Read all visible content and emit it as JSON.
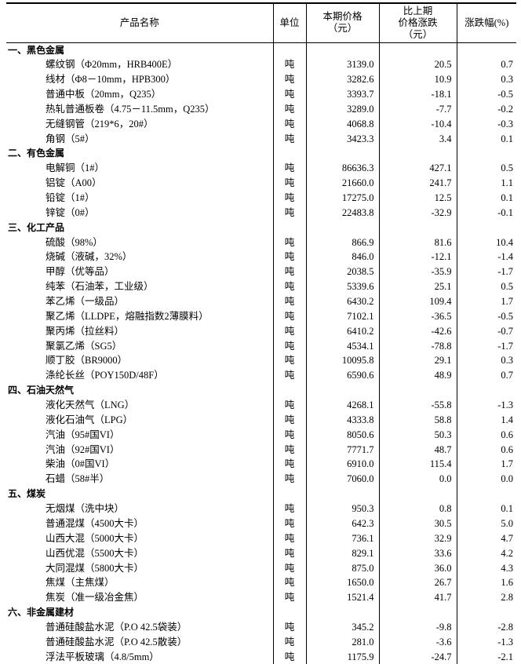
{
  "header": {
    "name": "产品名称",
    "unit": "单位",
    "price_l1": "本期价格",
    "price_l2": "（元）",
    "change_l1": "比上期",
    "change_l2": "价格涨跌",
    "change_l3": "（元）",
    "pct": "涨跌幅(%)"
  },
  "sections": [
    {
      "title": "一、黑色金属",
      "rows": [
        {
          "name": "螺纹钢（Φ20mm，HRB400E）",
          "unit": "吨",
          "price": "3139.0",
          "change": "20.5",
          "pct": "0.7"
        },
        {
          "name": "线材（Φ8－10mm，HPB300）",
          "unit": "吨",
          "price": "3282.6",
          "change": "10.9",
          "pct": "0.3"
        },
        {
          "name": "普通中板（20mm，Q235）",
          "unit": "吨",
          "price": "3393.7",
          "change": "-18.1",
          "pct": "-0.5"
        },
        {
          "name": "热轧普通板卷（4.75－11.5mm，Q235）",
          "unit": "吨",
          "price": "3289.0",
          "change": "-7.7",
          "pct": "-0.2"
        },
        {
          "name": "无缝钢管（219*6，20#）",
          "unit": "吨",
          "price": "4068.8",
          "change": "-10.4",
          "pct": "-0.3"
        },
        {
          "name": "角钢（5#）",
          "unit": "吨",
          "price": "3423.3",
          "change": "3.4",
          "pct": "0.1"
        }
      ]
    },
    {
      "title": "二、有色金属",
      "rows": [
        {
          "name": "电解铜（1#）",
          "unit": "吨",
          "price": "86636.3",
          "change": "427.1",
          "pct": "0.5"
        },
        {
          "name": "铝锭（A00）",
          "unit": "吨",
          "price": "21660.0",
          "change": "241.7",
          "pct": "1.1"
        },
        {
          "name": "铅锭（1#）",
          "unit": "吨",
          "price": "17275.0",
          "change": "12.5",
          "pct": "0.1"
        },
        {
          "name": "锌锭（0#）",
          "unit": "吨",
          "price": "22483.8",
          "change": "-32.9",
          "pct": "-0.1"
        }
      ]
    },
    {
      "title": "三、化工产品",
      "rows": [
        {
          "name": "硫酸（98%）",
          "unit": "吨",
          "price": "866.9",
          "change": "81.6",
          "pct": "10.4"
        },
        {
          "name": "烧碱（液碱，32%）",
          "unit": "吨",
          "price": "846.0",
          "change": "-12.1",
          "pct": "-1.4"
        },
        {
          "name": "甲醇（优等品）",
          "unit": "吨",
          "price": "2038.5",
          "change": "-35.9",
          "pct": "-1.7"
        },
        {
          "name": "纯苯（石油苯，工业级）",
          "unit": "吨",
          "price": "5339.6",
          "change": "25.1",
          "pct": "0.5"
        },
        {
          "name": "苯乙烯（一级品）",
          "unit": "吨",
          "price": "6430.2",
          "change": "109.4",
          "pct": "1.7"
        },
        {
          "name": "聚乙烯（LLDPE，熔融指数2薄膜料）",
          "unit": "吨",
          "price": "7102.1",
          "change": "-36.5",
          "pct": "-0.5"
        },
        {
          "name": "聚丙烯（拉丝料）",
          "unit": "吨",
          "price": "6410.2",
          "change": "-42.6",
          "pct": "-0.7"
        },
        {
          "name": "聚氯乙烯（SG5）",
          "unit": "吨",
          "price": "4534.1",
          "change": "-78.8",
          "pct": "-1.7"
        },
        {
          "name": "顺丁胶（BR9000）",
          "unit": "吨",
          "price": "10095.8",
          "change": "29.1",
          "pct": "0.3"
        },
        {
          "name": "涤纶长丝（POY150D/48F）",
          "unit": "吨",
          "price": "6590.6",
          "change": "48.9",
          "pct": "0.7"
        }
      ]
    },
    {
      "title": "四、石油天然气",
      "rows": [
        {
          "name": "液化天然气（LNG）",
          "unit": "吨",
          "price": "4268.1",
          "change": "-55.8",
          "pct": "-1.3"
        },
        {
          "name": "液化石油气（LPG）",
          "unit": "吨",
          "price": "4333.8",
          "change": "58.8",
          "pct": "1.4"
        },
        {
          "name": "汽油（95#国VI）",
          "unit": "吨",
          "price": "8050.6",
          "change": "50.3",
          "pct": "0.6"
        },
        {
          "name": "汽油（92#国VI）",
          "unit": "吨",
          "price": "7771.7",
          "change": "48.7",
          "pct": "0.6"
        },
        {
          "name": "柴油（0#国VI）",
          "unit": "吨",
          "price": "6910.0",
          "change": "115.4",
          "pct": "1.7"
        },
        {
          "name": "石蜡（58#半）",
          "unit": "吨",
          "price": "7060.0",
          "change": "0.0",
          "pct": "0.0"
        }
      ]
    },
    {
      "title": "五、煤炭",
      "rows": [
        {
          "name": "无烟煤（洗中块）",
          "unit": "吨",
          "price": "950.3",
          "change": "0.8",
          "pct": "0.1"
        },
        {
          "name": "普通混煤（4500大卡）",
          "unit": "吨",
          "price": "642.3",
          "change": "30.5",
          "pct": "5.0"
        },
        {
          "name": "山西大混（5000大卡）",
          "unit": "吨",
          "price": "736.1",
          "change": "32.9",
          "pct": "4.7"
        },
        {
          "name": "山西优混（5500大卡）",
          "unit": "吨",
          "price": "829.1",
          "change": "33.6",
          "pct": "4.2"
        },
        {
          "name": "大同混煤（5800大卡）",
          "unit": "吨",
          "price": "875.0",
          "change": "36.0",
          "pct": "4.3"
        },
        {
          "name": "焦煤（主焦煤）",
          "unit": "吨",
          "price": "1650.0",
          "change": "26.7",
          "pct": "1.6"
        },
        {
          "name": "焦炭（准一级冶金焦）",
          "unit": "吨",
          "price": "1521.4",
          "change": "41.7",
          "pct": "2.8"
        }
      ]
    },
    {
      "title": "六、非金属建材",
      "rows": [
        {
          "name": "普通硅酸盐水泥（P.O 42.5袋装）",
          "unit": "吨",
          "price": "345.2",
          "change": "-9.8",
          "pct": "-2.8"
        },
        {
          "name": "普通硅酸盐水泥（P.O 42.5散装）",
          "unit": "吨",
          "price": "281.0",
          "change": "-3.6",
          "pct": "-1.3"
        },
        {
          "name": "浮法平板玻璃（4.8/5mm）",
          "unit": "吨",
          "price": "1175.9",
          "change": "-24.7",
          "pct": "-2.1"
        }
      ]
    }
  ]
}
